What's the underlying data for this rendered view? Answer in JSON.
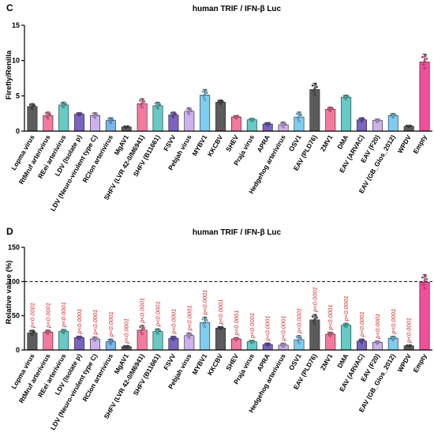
{
  "colors": {
    "pink": "#f26b95",
    "purple": "#9a8ad8",
    "teal": "#55c4c0",
    "blue": "#6aaee8",
    "lilac": "#c9a8ea",
    "dark": "#4a4a4a",
    "violet": "#6c53b8",
    "magenta": "#ee3d8e",
    "sky": "#70c8f0",
    "pvalue": "#d42020"
  },
  "chart_data": [
    {
      "panel": "C",
      "type": "bar",
      "title": "human TRIF / IFN-β Luc",
      "xlabel": "",
      "ylabel": "Firefly/Renilla",
      "ylim": [
        0,
        15
      ],
      "yticks": [
        "0",
        "5",
        "10",
        "15"
      ],
      "grid": false,
      "categories": [
        "Lopma virus",
        "RtMruf arterivirus",
        "REei arterivirus",
        "LDV (Isolate p)",
        "LDV (Neuro-virulent type C)",
        "RCIon arterivirus",
        "MgAV1",
        "SHFV (LVR 42-0/M6941)",
        "SHFV (B11661)",
        "FSVV",
        "Pebjah virus",
        "MYBV1",
        "KKCBV",
        "SHEV",
        "Praja virus",
        "APRA",
        "Hedgehog arterivirus",
        "OSV1",
        "EAV (PLD76)",
        "ZMV1",
        "DMA",
        "EAV (ARVAC)",
        "EAV (F20)",
        "EAV (GB_Glos_2012)",
        "WPDV",
        "Empty"
      ],
      "values": [
        3.5,
        2.2,
        3.7,
        2.4,
        2.2,
        1.5,
        0.6,
        3.9,
        3.6,
        2.3,
        2.8,
        5.1,
        4.1,
        2.0,
        1.6,
        1.0,
        0.9,
        2.0,
        5.9,
        3.1,
        4.8,
        1.6,
        1.5,
        2.2,
        0.7,
        9.8
      ],
      "errors": [
        0.4,
        0.5,
        0.4,
        0.2,
        0.4,
        0.4,
        0.1,
        0.7,
        0.5,
        0.4,
        0.5,
        0.8,
        0.3,
        0.2,
        0.2,
        0.2,
        0.4,
        0.7,
        0.9,
        0.3,
        0.3,
        0.3,
        0.2,
        0.3,
        0.1,
        1.1
      ]
    },
    {
      "panel": "D",
      "type": "bar",
      "title": "human TRIF / IFN-β Luc",
      "xlabel": "",
      "ylabel": "Relative value (%)",
      "ylim": [
        0,
        150
      ],
      "yticks": [
        "0",
        "50",
        "100",
        "150"
      ],
      "reference_line": 100,
      "grid": false,
      "categories": [
        "Lopma virus",
        "RtMruf arterivirus",
        "REei arterivirus",
        "LDV (Isolate p)",
        "LDV (Neuro-virulent type C)",
        "RCIon arterivirus",
        "MgAV1",
        "SHFV (LVR 42-0/M6941)",
        "SHFV (B11661)",
        "FSVV",
        "Pebjah virus",
        "MYBV1",
        "KKCBV",
        "SHEV",
        "Praja virus",
        "APRA",
        "Hedgehog arterivirus",
        "OSV1",
        "EAV (PLD76)",
        "ZMV1",
        "DMA",
        "EAV (ARVAC)",
        "EAV (F20)",
        "EAV (GB_Glos_2012)",
        "WPDV",
        "Empty"
      ],
      "values": [
        25,
        26,
        27,
        18,
        16,
        12,
        5,
        29,
        27,
        17,
        21,
        40,
        32,
        16,
        12,
        8,
        7,
        15,
        44,
        23,
        36,
        13,
        11,
        17,
        6,
        99
      ],
      "errors": [
        4,
        3,
        3,
        2,
        3,
        4,
        1,
        7,
        4,
        3,
        4,
        8,
        2,
        2,
        2,
        2,
        3,
        6,
        8,
        3,
        3,
        3,
        2,
        3,
        1,
        11
      ],
      "p_values": [
        "p<0.0001",
        "p<0.0001",
        "p<0.0001",
        "p<0.0001",
        "p<0.0001",
        "p<0.0001",
        "p<0.0001",
        "p<0.0001",
        "p<0.0001",
        "p<0.0001",
        "p<0.0001",
        "p<0.0001",
        "p<0.0001",
        "p<0.0001",
        "p<0.0001",
        "p<0.0001",
        "p<0.0001",
        "p<0.0001",
        "p<0.0001",
        "p<0.0001",
        "p<0.0001",
        "p<0.0001",
        "p<0.0001",
        "p<0.0001",
        "p<0.0001",
        ""
      ]
    }
  ]
}
